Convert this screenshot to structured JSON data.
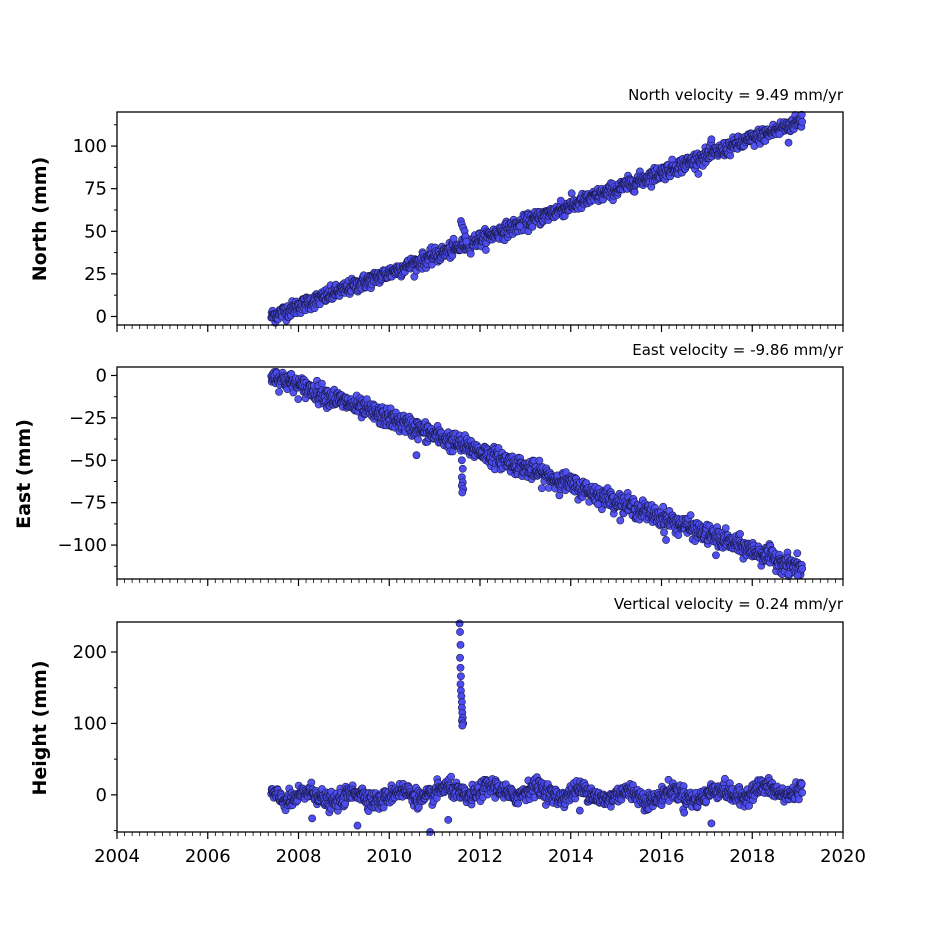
{
  "chart_data": [
    {
      "type": "scatter",
      "velocity_label": "North velocity = 9.49 mm/yr",
      "ylabel": "North (mm)",
      "ylim": [
        -5,
        120
      ],
      "yticks": [
        0,
        25,
        50,
        75,
        100
      ],
      "xlim": [
        2004,
        2020
      ],
      "marker_color": "#4c4cf0",
      "trend": {
        "x_start": 2007.4,
        "x_end": 2019.1,
        "y_start": 0,
        "y_end": 115,
        "noise": 2.2
      },
      "anomalies": [
        {
          "x": 2011.58,
          "y": 56
        },
        {
          "x": 2011.6,
          "y": 54
        },
        {
          "x": 2011.63,
          "y": 52
        },
        {
          "x": 2011.66,
          "y": 50
        },
        {
          "x": 2011.68,
          "y": 47
        },
        {
          "x": 2011.7,
          "y": 44
        },
        {
          "x": 2012.88,
          "y": 53
        },
        {
          "x": 2013.78,
          "y": 68
        },
        {
          "x": 2017.1,
          "y": 104
        },
        {
          "x": 2018.6,
          "y": 107
        },
        {
          "x": 2018.8,
          "y": 102
        }
      ]
    },
    {
      "type": "scatter",
      "velocity_label": "East velocity = -9.86 mm/yr",
      "ylabel": "East (mm)",
      "ylim": [
        -120,
        5
      ],
      "yticks": [
        0,
        -25,
        -50,
        -75,
        -100
      ],
      "xlim": [
        2004,
        2020
      ],
      "marker_color": "#4c4cf0",
      "trend": {
        "x_start": 2007.4,
        "x_end": 2019.1,
        "y_start": 0,
        "y_end": -114,
        "noise": 2.8
      },
      "anomalies": [
        {
          "x": 2010.6,
          "y": -47
        },
        {
          "x": 2011.6,
          "y": -50
        },
        {
          "x": 2011.62,
          "y": -55
        },
        {
          "x": 2011.6,
          "y": -60
        },
        {
          "x": 2011.62,
          "y": -63
        },
        {
          "x": 2011.6,
          "y": -65
        },
        {
          "x": 2011.63,
          "y": -67
        },
        {
          "x": 2011.61,
          "y": -69
        },
        {
          "x": 2014.6,
          "y": -76
        },
        {
          "x": 2016.1,
          "y": -97
        },
        {
          "x": 2017.2,
          "y": -106
        },
        {
          "x": 2018.8,
          "y": -117
        },
        {
          "x": 2019.0,
          "y": -118
        }
      ]
    },
    {
      "type": "scatter",
      "velocity_label": "Vertical velocity = 0.24 mm/yr",
      "ylabel": "Height (mm)",
      "ylim": [
        -52,
        242
      ],
      "yticks": [
        0,
        100,
        200
      ],
      "xlim": [
        2004,
        2020
      ],
      "xticks": [
        2004,
        2006,
        2008,
        2010,
        2012,
        2014,
        2016,
        2018,
        2020
      ],
      "marker_color": "#4c4cf0",
      "trend": {
        "x_start": 2007.4,
        "x_end": 2019.1,
        "y_start": 0,
        "y_end": 3,
        "noise": 6
      },
      "anomalies": [
        {
          "x": 2011.55,
          "y": 240
        },
        {
          "x": 2011.56,
          "y": 228
        },
        {
          "x": 2011.57,
          "y": 210
        },
        {
          "x": 2011.56,
          "y": 192
        },
        {
          "x": 2011.57,
          "y": 178
        },
        {
          "x": 2011.58,
          "y": 166
        },
        {
          "x": 2011.57,
          "y": 155
        },
        {
          "x": 2011.58,
          "y": 146
        },
        {
          "x": 2011.59,
          "y": 138
        },
        {
          "x": 2011.6,
          "y": 130
        },
        {
          "x": 2011.6,
          "y": 122
        },
        {
          "x": 2011.61,
          "y": 115
        },
        {
          "x": 2011.62,
          "y": 108
        },
        {
          "x": 2011.6,
          "y": 104
        },
        {
          "x": 2011.63,
          "y": 100
        },
        {
          "x": 2011.61,
          "y": 97
        },
        {
          "x": 2008.3,
          "y": -33
        },
        {
          "x": 2009.3,
          "y": -43
        },
        {
          "x": 2010.9,
          "y": -52
        },
        {
          "x": 2011.3,
          "y": -35
        },
        {
          "x": 2017.1,
          "y": -40
        },
        {
          "x": 2016.5,
          "y": -25
        },
        {
          "x": 2014.2,
          "y": -22
        }
      ]
    }
  ]
}
